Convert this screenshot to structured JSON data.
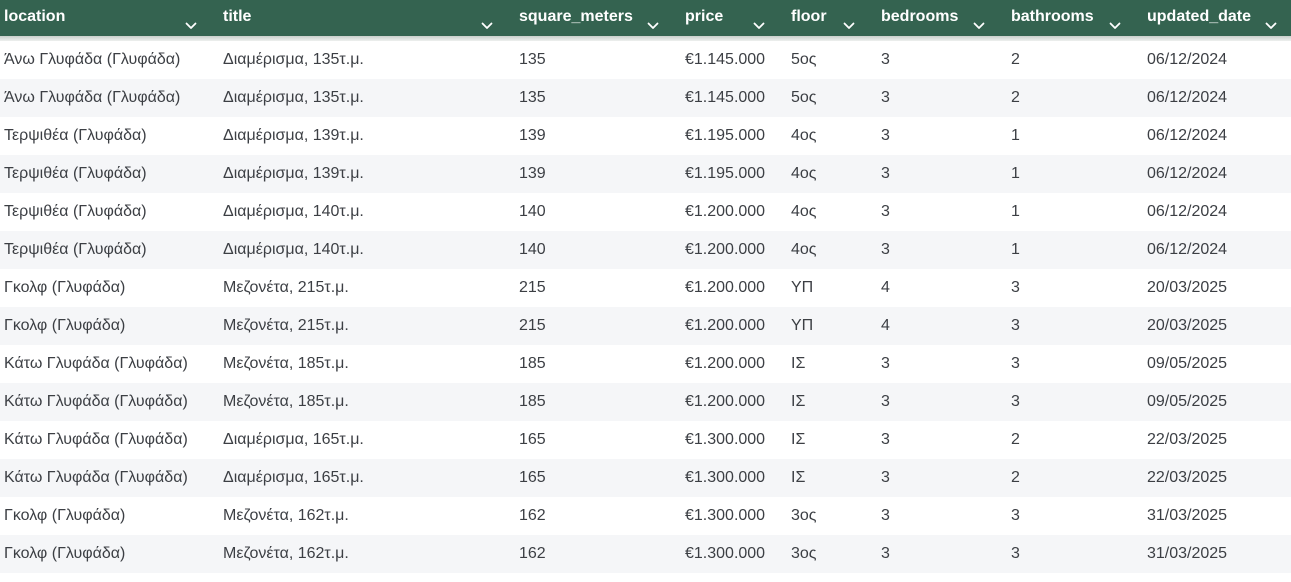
{
  "header": {
    "columns": [
      {
        "key": "location",
        "label": "location"
      },
      {
        "key": "title",
        "label": "title"
      },
      {
        "key": "square_meters",
        "label": "square_meters"
      },
      {
        "key": "price",
        "label": "price"
      },
      {
        "key": "floor",
        "label": "floor"
      },
      {
        "key": "bedrooms",
        "label": "bedrooms"
      },
      {
        "key": "bathrooms",
        "label": "bathrooms"
      },
      {
        "key": "updated_date",
        "label": "updated_date"
      }
    ],
    "sort_icon": "chevron-down-icon"
  },
  "colors": {
    "header_bg": "#346350",
    "header_text": "#ffffff",
    "row_alt_bg": "#f5f6f8",
    "cell_text": "#3c3f44"
  },
  "rows": [
    {
      "location": "Άνω Γλυφάδα (Γλυφάδα)",
      "title": "Διαμέρισμα, 135τ.μ.",
      "square_meters": "135",
      "price": "€1.145.000",
      "floor": "5ος",
      "bedrooms": "3",
      "bathrooms": "2",
      "updated_date": "06/12/2024"
    },
    {
      "location": "Άνω Γλυφάδα (Γλυφάδα)",
      "title": "Διαμέρισμα, 135τ.μ.",
      "square_meters": "135",
      "price": "€1.145.000",
      "floor": "5ος",
      "bedrooms": "3",
      "bathrooms": "2",
      "updated_date": "06/12/2024"
    },
    {
      "location": "Τερψιθέα (Γλυφάδα)",
      "title": "Διαμέρισμα, 139τ.μ.",
      "square_meters": "139",
      "price": "€1.195.000",
      "floor": "4ος",
      "bedrooms": "3",
      "bathrooms": "1",
      "updated_date": "06/12/2024"
    },
    {
      "location": "Τερψιθέα (Γλυφάδα)",
      "title": "Διαμέρισμα, 139τ.μ.",
      "square_meters": "139",
      "price": "€1.195.000",
      "floor": "4ος",
      "bedrooms": "3",
      "bathrooms": "1",
      "updated_date": "06/12/2024"
    },
    {
      "location": "Τερψιθέα (Γλυφάδα)",
      "title": "Διαμέρισμα, 140τ.μ.",
      "square_meters": "140",
      "price": "€1.200.000",
      "floor": "4ος",
      "bedrooms": "3",
      "bathrooms": "1",
      "updated_date": "06/12/2024"
    },
    {
      "location": "Τερψιθέα (Γλυφάδα)",
      "title": "Διαμέρισμα, 140τ.μ.",
      "square_meters": "140",
      "price": "€1.200.000",
      "floor": "4ος",
      "bedrooms": "3",
      "bathrooms": "1",
      "updated_date": "06/12/2024"
    },
    {
      "location": "Γκολφ (Γλυφάδα)",
      "title": "Μεζονέτα, 215τ.μ.",
      "square_meters": "215",
      "price": "€1.200.000",
      "floor": "ΥΠ",
      "bedrooms": "4",
      "bathrooms": "3",
      "updated_date": "20/03/2025"
    },
    {
      "location": "Γκολφ (Γλυφάδα)",
      "title": "Μεζονέτα, 215τ.μ.",
      "square_meters": "215",
      "price": "€1.200.000",
      "floor": "ΥΠ",
      "bedrooms": "4",
      "bathrooms": "3",
      "updated_date": "20/03/2025"
    },
    {
      "location": "Κάτω Γλυφάδα (Γλυφάδα)",
      "title": "Μεζονέτα, 185τ.μ.",
      "square_meters": "185",
      "price": "€1.200.000",
      "floor": "ΙΣ",
      "bedrooms": "3",
      "bathrooms": "3",
      "updated_date": "09/05/2025"
    },
    {
      "location": "Κάτω Γλυφάδα (Γλυφάδα)",
      "title": "Μεζονέτα, 185τ.μ.",
      "square_meters": "185",
      "price": "€1.200.000",
      "floor": "ΙΣ",
      "bedrooms": "3",
      "bathrooms": "3",
      "updated_date": "09/05/2025"
    },
    {
      "location": "Κάτω Γλυφάδα (Γλυφάδα)",
      "title": "Διαμέρισμα, 165τ.μ.",
      "square_meters": "165",
      "price": "€1.300.000",
      "floor": "ΙΣ",
      "bedrooms": "3",
      "bathrooms": "2",
      "updated_date": "22/03/2025"
    },
    {
      "location": "Κάτω Γλυφάδα (Γλυφάδα)",
      "title": "Διαμέρισμα, 165τ.μ.",
      "square_meters": "165",
      "price": "€1.300.000",
      "floor": "ΙΣ",
      "bedrooms": "3",
      "bathrooms": "2",
      "updated_date": "22/03/2025"
    },
    {
      "location": "Γκολφ (Γλυφάδα)",
      "title": "Μεζονέτα, 162τ.μ.",
      "square_meters": "162",
      "price": "€1.300.000",
      "floor": "3ος",
      "bedrooms": "3",
      "bathrooms": "3",
      "updated_date": "31/03/2025"
    },
    {
      "location": "Γκολφ (Γλυφάδα)",
      "title": "Μεζονέτα, 162τ.μ.",
      "square_meters": "162",
      "price": "€1.300.000",
      "floor": "3ος",
      "bedrooms": "3",
      "bathrooms": "3",
      "updated_date": "31/03/2025"
    }
  ]
}
